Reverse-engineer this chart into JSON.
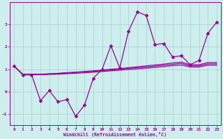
{
  "x": [
    0,
    1,
    2,
    3,
    4,
    5,
    6,
    7,
    8,
    9,
    10,
    11,
    12,
    13,
    14,
    15,
    16,
    17,
    18,
    19,
    20,
    21,
    22,
    23
  ],
  "line_noisy": [
    1.15,
    0.75,
    0.75,
    -0.4,
    0.05,
    -0.45,
    -0.35,
    -1.1,
    -0.6,
    0.6,
    1.0,
    2.05,
    1.05,
    2.7,
    3.55,
    3.4,
    2.1,
    2.15,
    1.55,
    1.6,
    1.2,
    1.4,
    2.6,
    3.1
  ],
  "line_smooth1": [
    1.15,
    0.78,
    0.78,
    0.78,
    0.8,
    0.82,
    0.85,
    0.87,
    0.9,
    0.93,
    0.96,
    1.0,
    1.03,
    1.07,
    1.11,
    1.15,
    1.19,
    1.23,
    1.28,
    1.32,
    1.2,
    1.2,
    1.3,
    1.3
  ],
  "line_smooth2": [
    1.15,
    0.77,
    0.77,
    0.77,
    0.79,
    0.81,
    0.83,
    0.86,
    0.88,
    0.91,
    0.94,
    0.97,
    1.0,
    1.04,
    1.07,
    1.1,
    1.14,
    1.18,
    1.22,
    1.26,
    1.15,
    1.15,
    1.24,
    1.24
  ],
  "line_smooth3": [
    1.15,
    0.76,
    0.76,
    0.76,
    0.77,
    0.78,
    0.8,
    0.82,
    0.84,
    0.87,
    0.9,
    0.93,
    0.96,
    0.99,
    1.02,
    1.05,
    1.08,
    1.12,
    1.16,
    1.19,
    1.1,
    1.1,
    1.18,
    1.18
  ],
  "bg_color": "#cceeed",
  "line_color": "#990099",
  "grid_color": "#aacccc",
  "xlabel": "Windchill (Refroidissement éolien,°C)",
  "ylim": [
    -1.5,
    4.0
  ],
  "xlim": [
    -0.5,
    23.5
  ],
  "yticks": [
    -1,
    0,
    1,
    2,
    3
  ],
  "xticks": [
    0,
    1,
    2,
    3,
    4,
    5,
    6,
    7,
    8,
    9,
    10,
    11,
    12,
    13,
    14,
    15,
    16,
    17,
    18,
    19,
    20,
    21,
    22,
    23
  ]
}
